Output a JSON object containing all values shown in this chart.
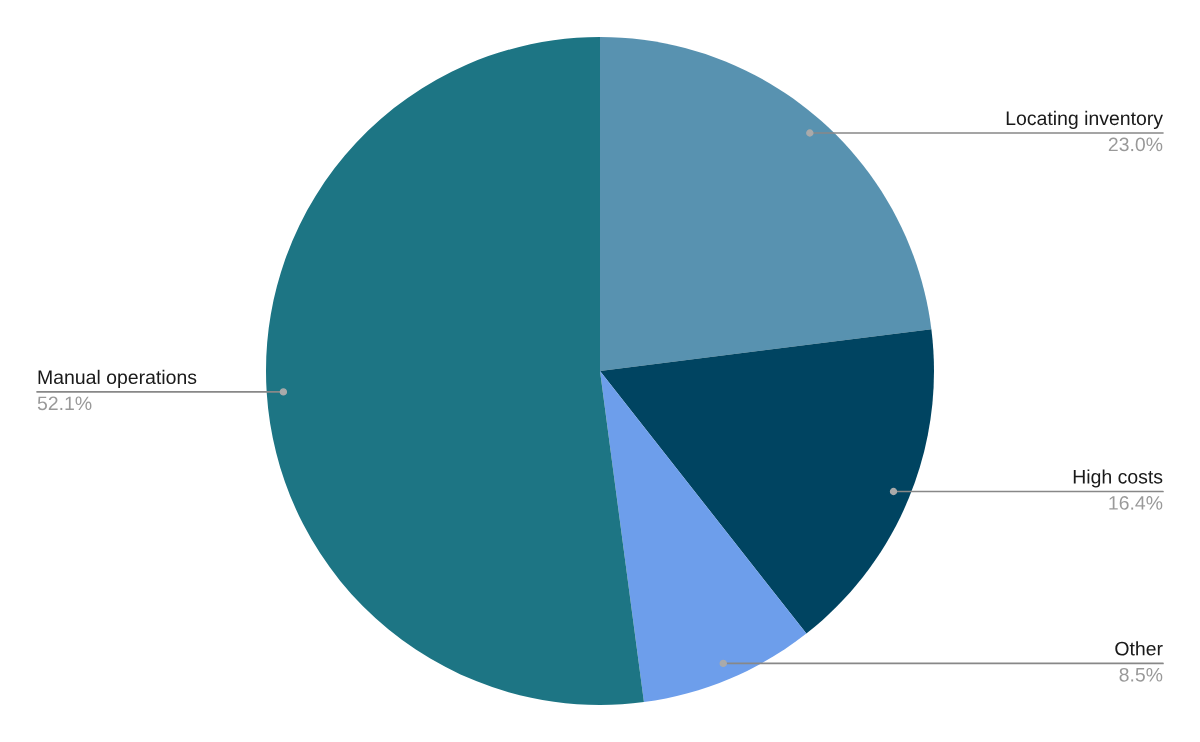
{
  "chart_data": {
    "type": "pie",
    "categories": [
      "Locating inventory",
      "High costs",
      "Other",
      "Manual operations"
    ],
    "values": [
      23.0,
      16.4,
      8.5,
      52.1
    ],
    "value_labels": [
      "23.0%",
      "16.4%",
      "8.5%",
      "52.1%"
    ],
    "colors": [
      "#5892b0",
      "#004461",
      "#6d9eeb",
      "#1d7584"
    ]
  }
}
